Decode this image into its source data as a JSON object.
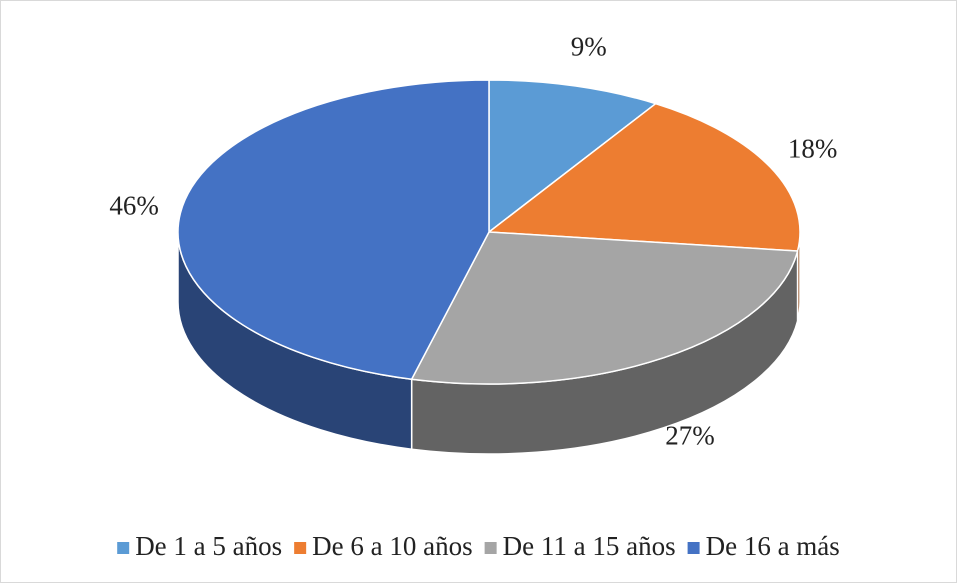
{
  "chart_data": {
    "type": "pie",
    "categories": [
      "De 1 a 5 años",
      "De 6 a 10 años",
      "De 11 a 15 años",
      "De 16 a más"
    ],
    "values": [
      9,
      18,
      27,
      46
    ],
    "value_labels": [
      "9%",
      "18%",
      "27%",
      "46%"
    ],
    "colors": [
      "#5b9bd5",
      "#ed7d31",
      "#a5a5a5",
      "#4472c4"
    ],
    "legend": "bottom"
  }
}
